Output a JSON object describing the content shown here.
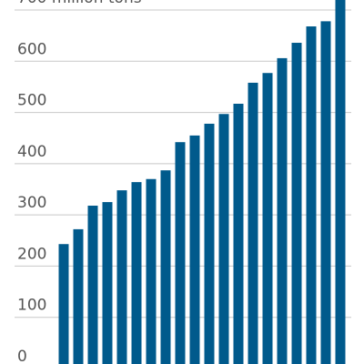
{
  "chart_data": {
    "type": "bar",
    "categories": [
      null,
      null,
      null,
      null,
      null,
      null,
      null,
      null,
      null,
      null,
      null,
      null,
      null,
      null,
      null,
      null,
      null,
      null,
      null,
      null
    ],
    "values": [
      243,
      272,
      318,
      325,
      348,
      364,
      370,
      387,
      442,
      455,
      478,
      497,
      517,
      558,
      577,
      606,
      636,
      668,
      678,
      730
    ],
    "color": "#005a8c",
    "ylim": [
      0,
      700
    ],
    "yticks": [
      0,
      100,
      200,
      300,
      400,
      500,
      600,
      {
        "value": 700,
        "label": "700 million tons"
      }
    ],
    "grid": true
  }
}
